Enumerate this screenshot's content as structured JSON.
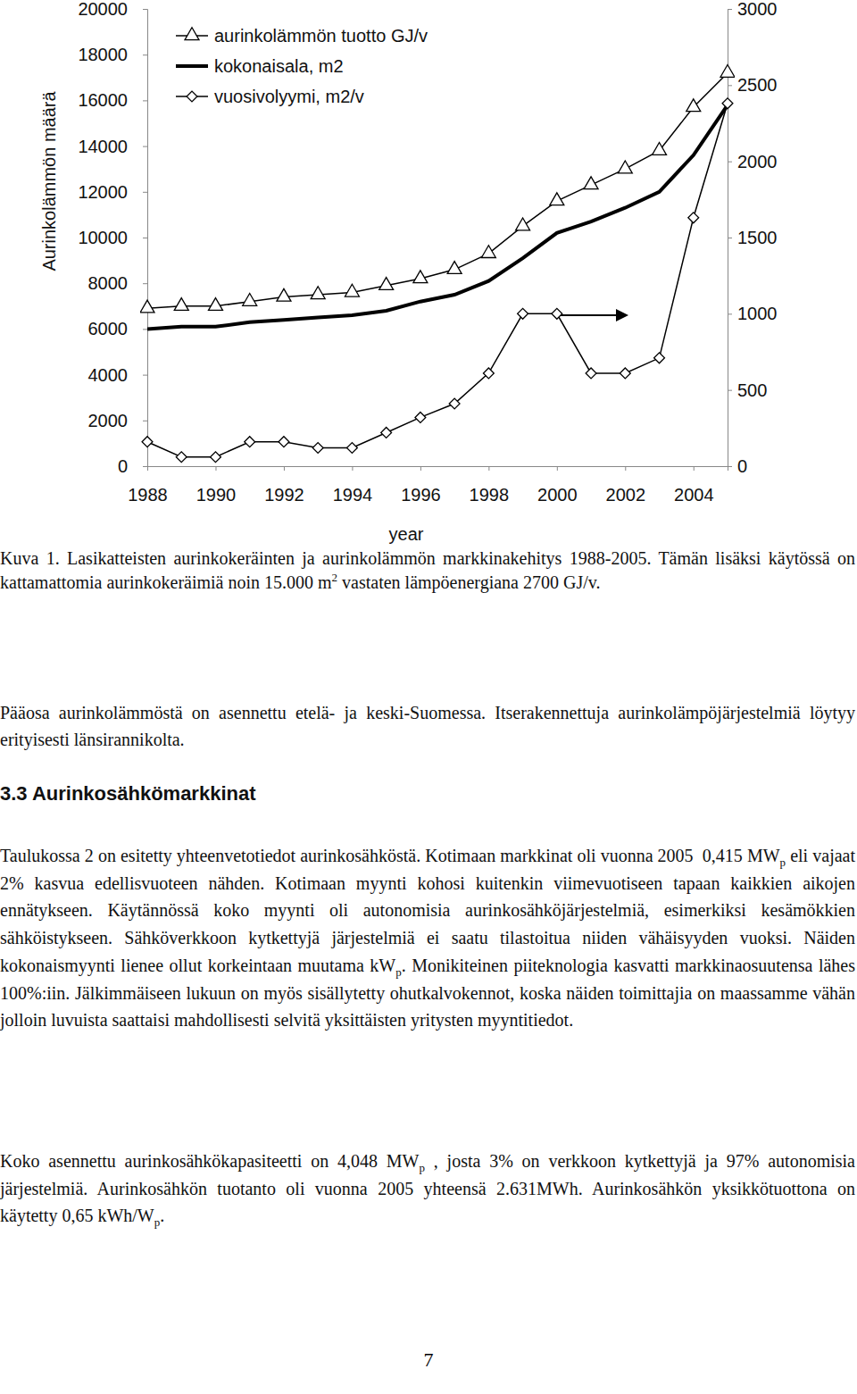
{
  "chart_data": {
    "type": "line",
    "x": [
      1988,
      1989,
      1990,
      1991,
      1992,
      1993,
      1994,
      1995,
      1996,
      1997,
      1998,
      1999,
      2000,
      2001,
      2002,
      2003,
      2004,
      2005
    ],
    "xlim": [
      1988,
      2005
    ],
    "xticks": [
      1988,
      1990,
      1992,
      1994,
      1996,
      1998,
      2000,
      2002,
      2004
    ],
    "x_label": "year",
    "y_label": "Aurinkolämmön määrä",
    "ylim": [
      0,
      20000
    ],
    "yticks": [
      0,
      2000,
      4000,
      6000,
      8000,
      10000,
      12000,
      14000,
      16000,
      18000,
      20000
    ],
    "y2lim": [
      0,
      3000
    ],
    "y2ticks": [
      0,
      500,
      1000,
      1500,
      2000,
      2500,
      3000
    ],
    "legend": "upper left",
    "series": [
      {
        "name": "aurinkolämmön tuotto GJ/v",
        "color": "#000000",
        "marker": "triangle",
        "line_style": "solid",
        "values": [
          6900,
          7000,
          7000,
          7200,
          7400,
          7500,
          7600,
          7900,
          8200,
          8600,
          9300,
          10500,
          11600,
          12300,
          13000,
          13800,
          15700,
          17200
        ]
      },
      {
        "name": "kokonaisala, m2",
        "color": "#000000",
        "marker": "none",
        "line_style": "solid",
        "values": [
          6000,
          6100,
          6100,
          6300,
          6400,
          6500,
          6600,
          6800,
          7200,
          7500,
          8100,
          9100,
          10200,
          10700,
          11300,
          12000,
          13600,
          15800
        ]
      },
      {
        "name": "vuosivolyymi, m2/v",
        "color": "#000000",
        "marker": "diamond",
        "line_style": "solid",
        "axis": "y2",
        "values": [
          160,
          60,
          60,
          160,
          160,
          120,
          120,
          220,
          320,
          410,
          610,
          1000,
          1000,
          610,
          610,
          710,
          1630,
          2380
        ]
      }
    ]
  },
  "document": {
    "caption": [
      {
        "text": "Kuva 1. Lasikatteisten aurinkokeräinten ja aurinkolämmön markkinakehitys 1988-2005. Tämän lisäksi käytössä on kattamattomia aurinkokeräimiä noin 15.000 m"
      },
      {
        "sup": "2"
      },
      {
        "text": " vastaten lämpöenergiana 2700 GJ/v."
      }
    ],
    "paragraphs": [
      [
        {
          "text": "Pääosa aurinkolämmöstä on asennettu etelä- ja keski-Suomessa. Itserakennettuja aurinkolämpöjärjestelmiä löytyy erityisesti länsirannikolta."
        }
      ]
    ],
    "section": {
      "heading": "3.3 Aurinkosähkömarkkinat",
      "paragraphs": [
        [
          {
            "text": "Taulukossa 2 on esitetty yhteenvetotiedot aurinkosähköstä. Kotimaan markkinat oli vuonna 2005  0,415 MW"
          },
          {
            "sub": "p"
          },
          {
            "text": " eli vajaat 2% kasvua edellisvuoteen nähden. Kotimaan myynti kohosi kuitenkin viimevuotiseen tapaan kaikkien aikojen ennätykseen. Käytännössä koko myynti oli autonomisia aurinkosähköjärjestelmiä, esimerkiksi kesämökkien sähköistykseen. Sähköverkkoon kytkettyjä järjestelmiä ei saatu tilastoitua niiden vähäisyyden vuoksi. Näiden kokonaismyynti lienee ollut korkeintaan muutama kW"
          },
          {
            "sub": "p"
          },
          {
            "text": ". Monikiteinen piiteknologia kasvatti markkinaosuutensa lähes 100%:iin. Jälkimmäiseen lukuun on myös sisällytetty ohutkalvokennot, koska näiden toimittajia on maassamme vähän jolloin luvuista saattaisi mahdollisesti selvitä yksittäisten yritysten myyntitiedot."
          }
        ],
        [
          {
            "text": "Koko asennettu aurinkosähkökapasiteetti on 4,048 MW"
          },
          {
            "sub": "p"
          },
          {
            "text": " , josta 3% on verkkoon kytkettyjä ja 97% autonomisia järjestelmiä. Aurinkosähkön tuotanto oli vuonna 2005 yhteensä 2.631MWh. Aurinkosähkön yksikkötuottona on käytetty 0,65 kWh/W"
          },
          {
            "sub": "p"
          },
          {
            "text": "."
          }
        ]
      ]
    },
    "page_number": "7"
  }
}
